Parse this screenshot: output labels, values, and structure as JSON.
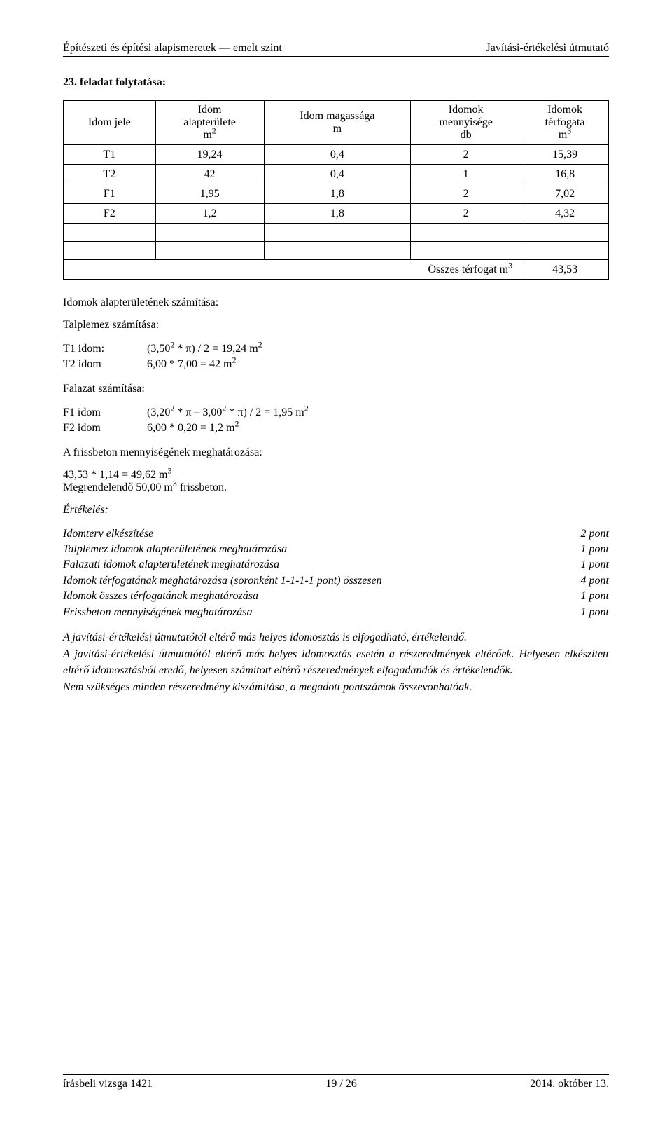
{
  "header": {
    "left": "Építészeti és építési alapismeretek — emelt szint",
    "right": "Javítási-értékelési útmutató"
  },
  "section_title": "23. feladat folytatása:",
  "table": {
    "columns": [
      {
        "l1": "Idom jele",
        "l2": ""
      },
      {
        "l1": "Idom",
        "l2": "alapterülete",
        "l3": "m²"
      },
      {
        "l1": "Idom magassága",
        "l2": "m"
      },
      {
        "l1": "Idomok",
        "l2": "mennyisége",
        "l3": "db"
      },
      {
        "l1": "Idomok",
        "l2": "térfogata",
        "l3": "m³"
      }
    ],
    "rows": [
      [
        "T1",
        "19,24",
        "0,4",
        "2",
        "15,39"
      ],
      [
        "T2",
        "42",
        "0,4",
        "1",
        "16,8"
      ],
      [
        "F1",
        "1,95",
        "1,8",
        "2",
        "7,02"
      ],
      [
        "F2",
        "1,2",
        "1,8",
        "2",
        "4,32"
      ]
    ],
    "total_label": "Összes térfogat m³",
    "total_value": "43,53"
  },
  "body": {
    "idomok_title": "Idomok alapterületének számítása:",
    "talplemez_title": "Talplemez számítása:",
    "t1_label": "T1 idom:",
    "t1_val": "(3,50² * π) / 2 = 19,24 m²",
    "t2_label": "T2 idom",
    "t2_val": "6,00 * 7,00 = 42 m²",
    "falazat_title": "Falazat számítása:",
    "f1_label": "F1 idom",
    "f1_val": "(3,20² * π – 3,00² * π) / 2 = 1,95 m²",
    "f2_label": "F2 idom",
    "f2_val": "6,00 * 0,20 = 1,2 m²",
    "friss_title": "A frissbeton mennyiségének meghatározása:",
    "friss_calc": "43,53 * 1,14 = 49,62 m³",
    "friss_order": "Megrendelendő 50,00 m³ frissbeton."
  },
  "eval": {
    "title": "Értékelés:",
    "rows": [
      {
        "l": "Idomterv elkészítése",
        "p": "2 pont"
      },
      {
        "l": "Talplemez idomok alapterületének meghatározása",
        "p": "1 pont"
      },
      {
        "l": "Falazati idomok alapterületének meghatározása",
        "p": "1 pont"
      },
      {
        "l": "Idomok térfogatának meghatározása (soronként 1-1-1-1 pont) összesen",
        "p": "4 pont"
      },
      {
        "l": "Idomok összes térfogatának meghatározása",
        "p": "1 pont"
      },
      {
        "l": "Frissbeton mennyiségének meghatározása",
        "p": "1 pont"
      }
    ]
  },
  "notes": {
    "n1": "A javítási-értékelési útmutatótól eltérő más helyes idomosztás is elfogadható, értékelendő.",
    "n2": "A javítási-értékelési útmutatótól eltérő más helyes idomosztás esetén a részeredmények eltérőek. Helyesen elkészített eltérő idomosztásból eredő, helyesen számított eltérő részeredmények elfogadandók és értékelendők.",
    "n3": "Nem szükséges minden részeredmény kiszámítása, a megadott pontszámok összevonhatóak."
  },
  "footer": {
    "left": "írásbeli vizsga 1421",
    "center": "19 / 26",
    "right": "2014. október 13."
  }
}
